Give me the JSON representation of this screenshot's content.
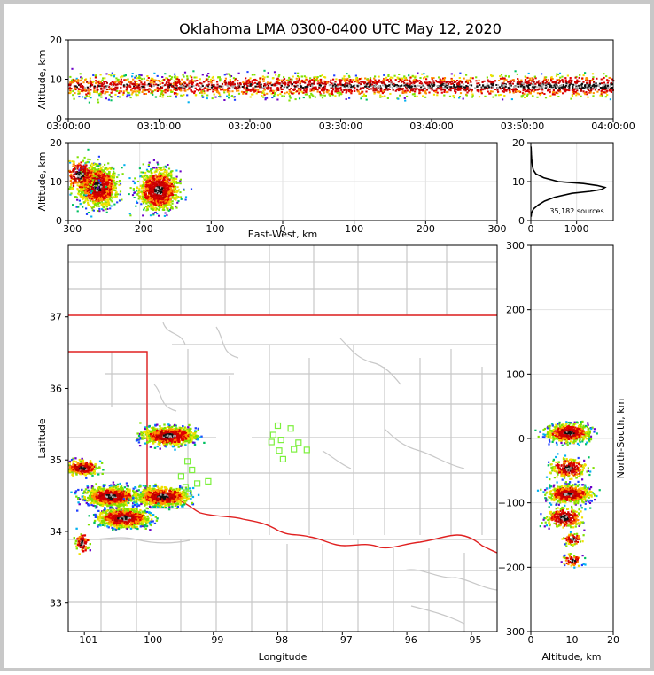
{
  "chart_data": [
    {
      "id": "time_height",
      "type": "scatter",
      "title": "Oklahoma LMA 0300-0400 UTC May 12, 2020",
      "xlabel": "",
      "ylabel": "Altitude, km",
      "x_range_minutes": [
        0,
        60
      ],
      "ylim": [
        0,
        20
      ],
      "xticks": [
        0,
        10,
        20,
        30,
        40,
        50,
        60
      ],
      "xtick_labels": [
        "03:00:00",
        "03:10:00",
        "03:20:00",
        "03:30:00",
        "03:40:00",
        "03:50:00",
        "04:00:00"
      ],
      "yticks": [
        0,
        10,
        20
      ],
      "source_altitude_band_km": [
        2,
        15
      ],
      "peak_altitude_km": 8.5
    },
    {
      "id": "ew_height",
      "type": "scatter",
      "xlabel": "East-West, km",
      "ylabel": "Altitude, km",
      "xlim": [
        -300,
        300
      ],
      "ylim": [
        0,
        20
      ],
      "xticks": [
        -300,
        -200,
        -100,
        0,
        100,
        200,
        300
      ],
      "yticks": [
        0,
        10,
        20
      ],
      "clusters": [
        {
          "x_km": -260,
          "alt_km": 9,
          "density": "high"
        },
        {
          "x_km": -175,
          "alt_km": 8,
          "density": "high"
        },
        {
          "x_km": -285,
          "alt_km": 12,
          "density": "medium"
        }
      ]
    },
    {
      "id": "alt_histogram",
      "type": "line",
      "xlim": [
        0,
        1800
      ],
      "ylim": [
        0,
        20
      ],
      "xticks": [
        0,
        1000
      ],
      "yticks": [
        0,
        10,
        20
      ],
      "annotation": "35,182 sources",
      "series": [
        {
          "name": "sources per altitude bin",
          "altitude_km": [
            1,
            2,
            3,
            4,
            5,
            6,
            7,
            7.5,
            8,
            8.5,
            9,
            9.5,
            10,
            11,
            12,
            13,
            14,
            15,
            16,
            17,
            18,
            19
          ],
          "count": [
            5,
            15,
            60,
            160,
            300,
            520,
            900,
            1300,
            1550,
            1620,
            1450,
            1150,
            600,
            280,
            110,
            55,
            35,
            25,
            18,
            12,
            8,
            3
          ]
        }
      ]
    },
    {
      "id": "plan_view",
      "type": "scatter",
      "xlabel": "Longitude",
      "ylabel": "Latitude",
      "xlim": [
        -101.25,
        -94.6
      ],
      "ylim": [
        32.6,
        38
      ],
      "xticks": [
        -101,
        -100,
        -99,
        -98,
        -97,
        -96,
        -95
      ],
      "yticks": [
        33,
        34,
        35,
        36,
        37
      ],
      "clusters": [
        {
          "lon": -99.7,
          "lat": 35.35,
          "density": "high"
        },
        {
          "lon": -100.6,
          "lat": 34.5,
          "density": "high"
        },
        {
          "lon": -99.8,
          "lat": 34.5,
          "density": "high"
        },
        {
          "lon": -101.05,
          "lat": 34.9,
          "density": "medium"
        },
        {
          "lon": -100.4,
          "lat": 34.2,
          "density": "high"
        },
        {
          "lon": -101.05,
          "lat": 33.85,
          "density": "low"
        }
      ],
      "stations": [
        {
          "lon": -98.0,
          "lat": 35.48
        },
        {
          "lon": -97.8,
          "lat": 35.44
        },
        {
          "lon": -98.07,
          "lat": 35.35
        },
        {
          "lon": -97.95,
          "lat": 35.28
        },
        {
          "lon": -98.1,
          "lat": 35.25
        },
        {
          "lon": -97.68,
          "lat": 35.24
        },
        {
          "lon": -97.75,
          "lat": 35.15
        },
        {
          "lon": -97.55,
          "lat": 35.14
        },
        {
          "lon": -97.98,
          "lat": 35.13
        },
        {
          "lon": -97.92,
          "lat": 35.01
        },
        {
          "lon": -99.4,
          "lat": 34.98
        },
        {
          "lon": -99.33,
          "lat": 34.86
        },
        {
          "lon": -99.5,
          "lat": 34.77
        },
        {
          "lon": -99.25,
          "lat": 34.67
        },
        {
          "lon": -99.43,
          "lat": 34.62
        },
        {
          "lon": -99.08,
          "lat": 34.7
        },
        {
          "lon": -99.38,
          "lat": 34.53
        }
      ]
    },
    {
      "id": "ns_height",
      "type": "scatter",
      "xlabel": "Altitude, km",
      "ylabel": "North-South, km",
      "xlim": [
        0,
        20
      ],
      "ylim": [
        -300,
        300
      ],
      "xticks": [
        0,
        10,
        20
      ],
      "yticks": [
        -300,
        -200,
        -100,
        0,
        100,
        200,
        300
      ],
      "clusters": [
        {
          "y_km": 10,
          "alt_km": 9,
          "density": "high"
        },
        {
          "y_km": -45,
          "alt_km": 9,
          "density": "medium"
        },
        {
          "y_km": -85,
          "alt_km": 9,
          "density": "high"
        },
        {
          "y_km": -122,
          "alt_km": 8,
          "density": "medium"
        },
        {
          "y_km": -155,
          "alt_km": 10,
          "density": "low"
        },
        {
          "y_km": -188,
          "alt_km": 10,
          "density": "low"
        }
      ]
    }
  ]
}
